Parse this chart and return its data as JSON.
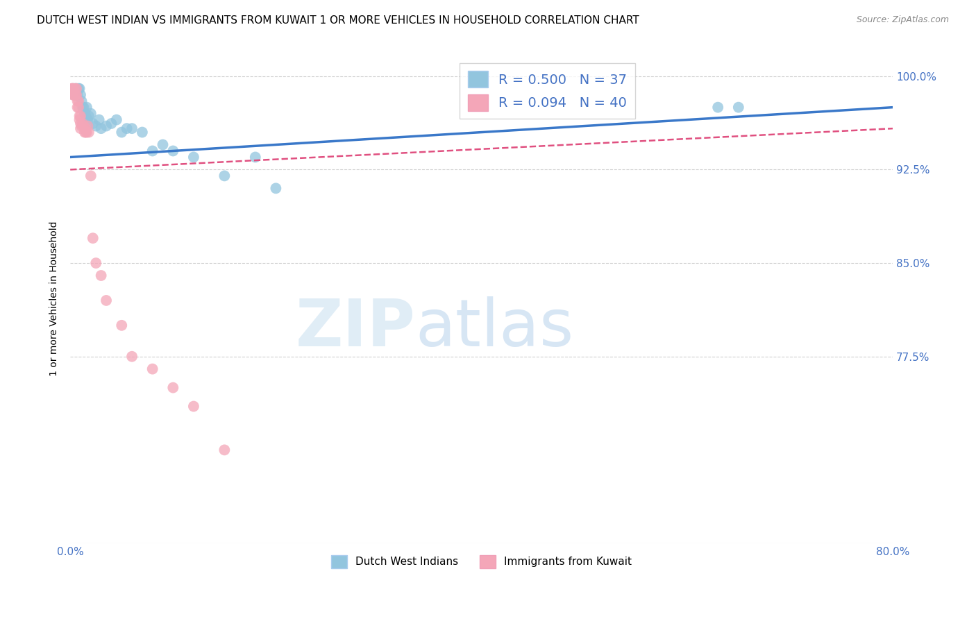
{
  "title": "DUTCH WEST INDIAN VS IMMIGRANTS FROM KUWAIT 1 OR MORE VEHICLES IN HOUSEHOLD CORRELATION CHART",
  "source": "Source: ZipAtlas.com",
  "ylabel": "1 or more Vehicles in Household",
  "ytick_labels": [
    "100.0%",
    "92.5%",
    "85.0%",
    "77.5%"
  ],
  "ytick_values": [
    1.0,
    0.925,
    0.85,
    0.775
  ],
  "xmin": 0.0,
  "xmax": 80.0,
  "ymin": 0.625,
  "ymax": 1.018,
  "legend_r_blue": "R = 0.500",
  "legend_n_blue": "N = 37",
  "legend_r_pink": "R = 0.094",
  "legend_n_pink": "N = 40",
  "label_blue": "Dutch West Indians",
  "label_pink": "Immigrants from Kuwait",
  "blue_color": "#92c5de",
  "pink_color": "#f4a6b8",
  "blue_line_color": "#3a78c9",
  "pink_line_color": "#e05080",
  "blue_scatter_x": [
    0.3,
    0.4,
    0.5,
    0.6,
    0.7,
    0.8,
    0.9,
    1.0,
    1.1,
    1.2,
    1.3,
    1.4,
    1.5,
    1.6,
    1.7,
    1.8,
    2.0,
    2.2,
    2.5,
    2.8,
    3.0,
    3.5,
    4.0,
    4.5,
    5.0,
    5.5,
    6.0,
    7.0,
    8.0,
    9.0,
    10.0,
    12.0,
    15.0,
    18.0,
    20.0,
    63.0,
    65.0
  ],
  "blue_scatter_y": [
    0.99,
    0.985,
    0.99,
    0.99,
    0.985,
    0.99,
    0.99,
    0.985,
    0.98,
    0.975,
    0.975,
    0.97,
    0.968,
    0.975,
    0.965,
    0.968,
    0.97,
    0.962,
    0.96,
    0.965,
    0.958,
    0.96,
    0.962,
    0.965,
    0.955,
    0.958,
    0.958,
    0.955,
    0.94,
    0.945,
    0.94,
    0.935,
    0.92,
    0.935,
    0.91,
    0.975,
    0.975
  ],
  "pink_scatter_x": [
    0.2,
    0.3,
    0.4,
    0.5,
    0.5,
    0.6,
    0.6,
    0.7,
    0.7,
    0.8,
    0.8,
    0.9,
    0.9,
    1.0,
    1.0,
    1.0,
    1.1,
    1.2,
    1.3,
    1.4,
    1.5,
    1.5,
    1.6,
    1.7,
    1.8,
    2.0,
    2.2,
    2.5,
    3.0,
    3.5,
    5.0,
    6.0,
    8.0,
    10.0,
    12.0,
    15.0,
    0.15,
    0.2,
    0.25,
    0.3
  ],
  "pink_scatter_y": [
    0.99,
    0.99,
    0.985,
    0.99,
    0.985,
    0.99,
    0.985,
    0.98,
    0.975,
    0.98,
    0.975,
    0.968,
    0.965,
    0.968,
    0.962,
    0.958,
    0.96,
    0.962,
    0.96,
    0.955,
    0.958,
    0.955,
    0.955,
    0.96,
    0.955,
    0.92,
    0.87,
    0.85,
    0.84,
    0.82,
    0.8,
    0.775,
    0.765,
    0.75,
    0.735,
    0.7,
    0.99,
    0.99,
    0.985,
    0.985
  ],
  "watermark_zip": "ZIP",
  "watermark_atlas": "atlas",
  "title_fontsize": 11,
  "axis_label_color": "#4472c4",
  "source_color": "#888888"
}
